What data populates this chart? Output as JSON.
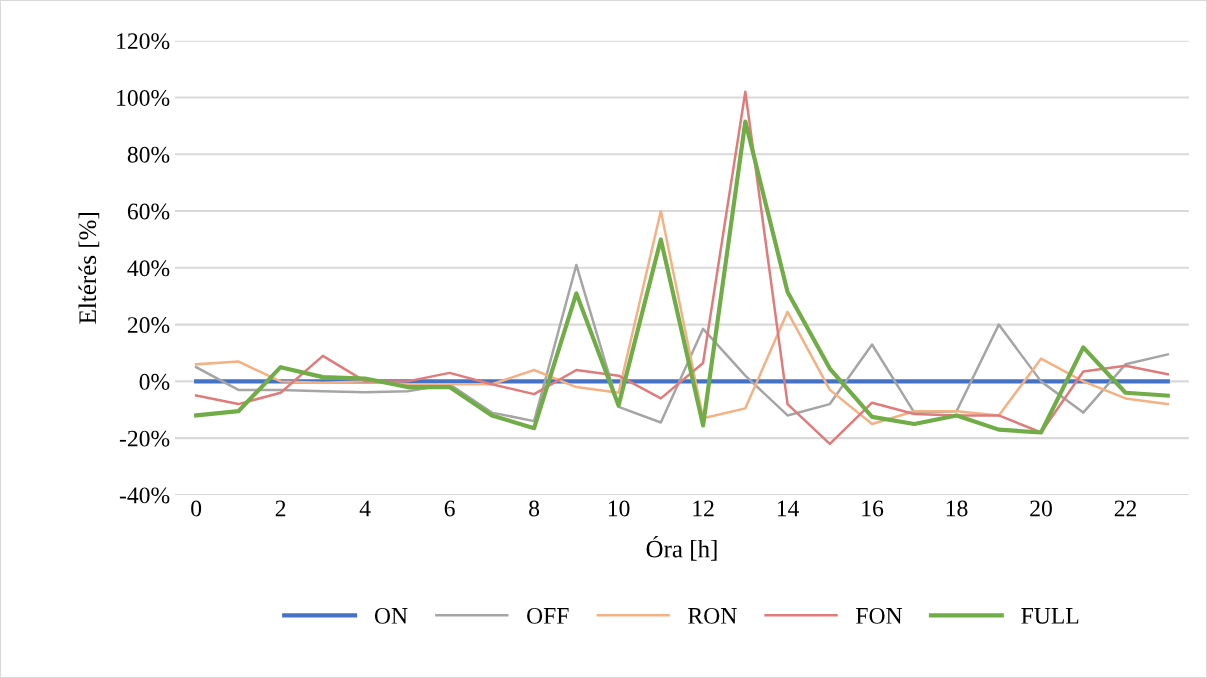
{
  "chart_data": {
    "type": "line",
    "xlabel": "Óra [h]",
    "ylabel": "Eltérés [%]",
    "x": [
      0,
      1,
      2,
      3,
      4,
      5,
      6,
      7,
      8,
      9,
      10,
      11,
      12,
      13,
      14,
      15,
      16,
      17,
      18,
      19,
      20,
      21,
      22,
      23
    ],
    "xlim": [
      -0.5,
      23.5
    ],
    "xticks": [
      0,
      2,
      4,
      6,
      8,
      10,
      12,
      14,
      16,
      18,
      20,
      22
    ],
    "ylim": [
      -40,
      120
    ],
    "yticks": [
      {
        "value": -40,
        "label": "-40%"
      },
      {
        "value": -20,
        "label": "-20%"
      },
      {
        "value": 0,
        "label": "0%"
      },
      {
        "value": 20,
        "label": "20%"
      },
      {
        "value": 40,
        "label": "40%"
      },
      {
        "value": 60,
        "label": "60%"
      },
      {
        "value": 80,
        "label": "80%"
      },
      {
        "value": 100,
        "label": "100%"
      },
      {
        "value": 120,
        "label": "120%"
      }
    ],
    "grid": "y",
    "legend": "bottom",
    "marker": "none",
    "series": [
      {
        "name": "ON",
        "color": "#4472c4",
        "values": [
          0,
          0,
          0,
          0,
          0,
          0,
          0,
          0,
          0,
          0,
          0,
          0,
          0,
          0,
          0,
          0,
          0,
          0,
          0,
          0,
          0,
          0,
          0,
          0
        ]
      },
      {
        "name": "OFF",
        "color": "#a5a5a5",
        "values": [
          5,
          -3,
          -3,
          -3.5,
          -3.8,
          -3.5,
          -1,
          -11,
          -14,
          41,
          -9,
          -14.5,
          18.5,
          2,
          -12,
          -8,
          13,
          -11,
          -10.5,
          20,
          0,
          -11,
          6,
          9.5
        ]
      },
      {
        "name": "RON",
        "color": "#f4b183",
        "values": [
          6,
          7,
          0,
          -0.5,
          0,
          -1,
          -1,
          -1,
          4,
          -2,
          -4,
          60,
          -13,
          -9.5,
          24.5,
          -3,
          -15,
          -10.5,
          -10.5,
          -12,
          8,
          0,
          -6,
          -8
        ]
      },
      {
        "name": "FON",
        "color": "#e07b7b",
        "values": [
          -5,
          -8,
          -4,
          9,
          0,
          0,
          3,
          -1,
          -4.5,
          4,
          2,
          -6,
          6.5,
          102,
          -8,
          -22,
          -7.5,
          -11.5,
          -12,
          -12,
          -18,
          3.5,
          5.5,
          2.5
        ]
      },
      {
        "name": "FULL",
        "color": "#70ad47",
        "values": [
          -12,
          -10.5,
          5,
          1.5,
          1,
          -2,
          -2,
          -12,
          -16.5,
          31,
          -8.5,
          50,
          -15.5,
          91.5,
          31.5,
          4.5,
          -12.5,
          -15,
          -12,
          -17,
          -18,
          12,
          -4,
          -5
        ]
      }
    ]
  }
}
